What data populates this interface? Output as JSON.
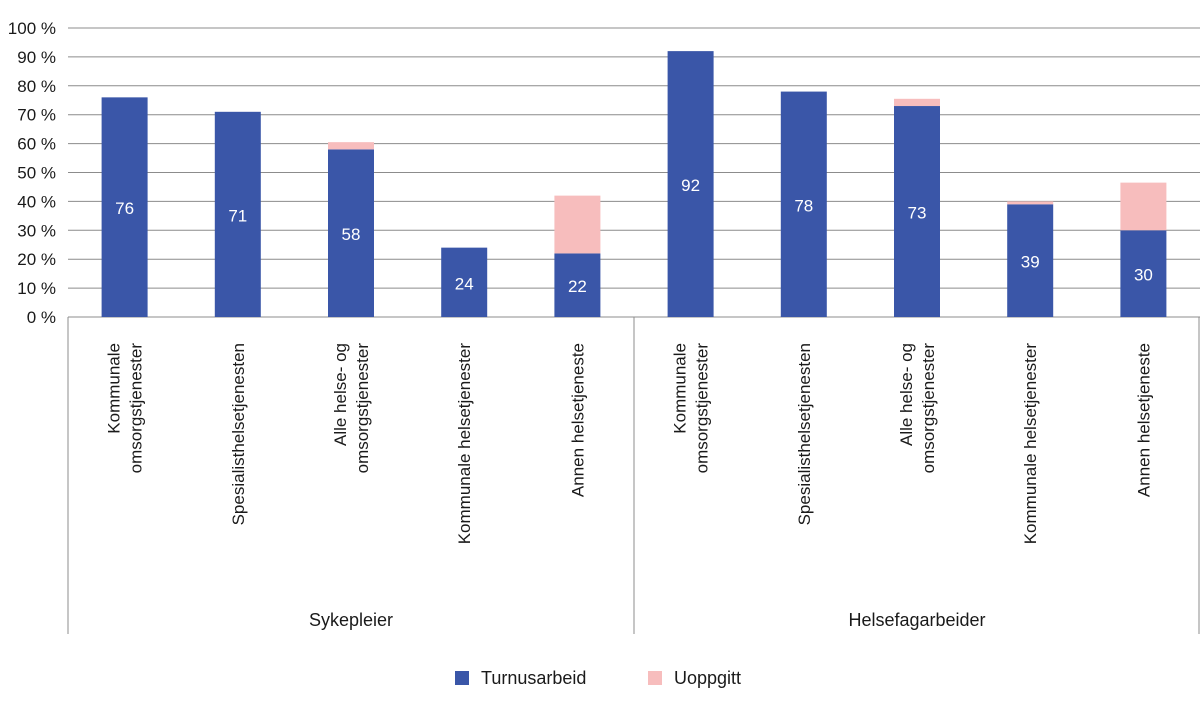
{
  "chart_data": {
    "type": "bar",
    "stacked": true,
    "ylim": [
      0,
      100
    ],
    "yticks": [
      "0 %",
      "10 %",
      "20 %",
      "30 %",
      "40 %",
      "50 %",
      "60 %",
      "70 %",
      "80 %",
      "90 %",
      "100 %"
    ],
    "grid": true,
    "legend_position": "bottom",
    "groups": [
      {
        "name": "Sykepleier",
        "categories": [
          [
            "Kommunale",
            "omsorgstjenester"
          ],
          [
            "Spesialisthelsetjenesten"
          ],
          [
            "Alle helse- og",
            "omsorgstjenester"
          ],
          [
            "Kommunale helsetjenester"
          ],
          [
            "Annen helsetjeneste"
          ]
        ]
      },
      {
        "name": "Helsefagarbeider",
        "categories": [
          [
            "Kommunale",
            "omsorgstjenester"
          ],
          [
            "Spesialisthelsetjenesten"
          ],
          [
            "Alle helse- og",
            "omsorgstjenester"
          ],
          [
            "Kommunale helsetjenester"
          ],
          [
            "Annen helsetjeneste"
          ]
        ]
      }
    ],
    "series": [
      {
        "name": "Turnusarbeid",
        "color": "#3a56a8",
        "values": [
          76,
          71,
          58,
          24,
          22,
          92,
          78,
          73,
          39,
          30
        ],
        "labels": [
          "76",
          "71",
          "58",
          "24",
          "22",
          "92",
          "78",
          "73",
          "39",
          "30"
        ]
      },
      {
        "name": "Uoppgitt",
        "color": "#f7bdbd",
        "values": [
          0,
          0,
          2.5,
          0,
          20,
          0,
          0,
          2.5,
          1,
          16.5
        ]
      }
    ]
  }
}
